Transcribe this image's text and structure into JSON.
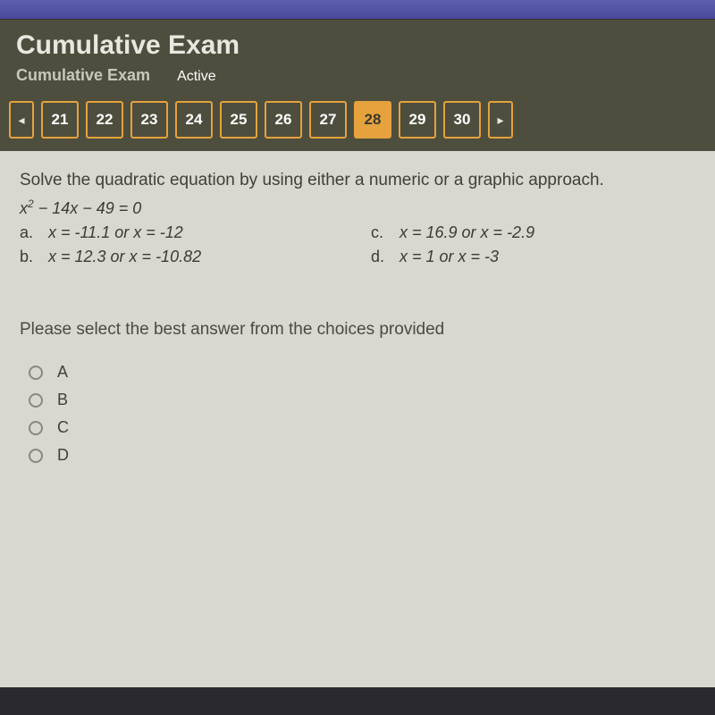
{
  "colors": {
    "header_bg": "#4e4e3e",
    "content_bg": "#d8d8d0",
    "accent": "#e6a23c",
    "title_text": "#e8e8e0",
    "body_text": "#3a3a38"
  },
  "header": {
    "title": "Cumulative Exam",
    "subtitle": "Cumulative Exam",
    "status": "Active"
  },
  "nav": {
    "prev_glyph": "◂",
    "next_glyph": "▸",
    "questions": [
      "21",
      "22",
      "23",
      "24",
      "25",
      "26",
      "27",
      "28",
      "29",
      "30"
    ],
    "active_index": 7
  },
  "question": {
    "prompt": "Solve the quadratic equation by using either a numeric or a graphic approach.",
    "equation_html": "x<span class='sup'>2</span> − 14x − 49 = 0",
    "options": [
      {
        "letter": "a.",
        "text": "x = -11.1 or x = -12"
      },
      {
        "letter": "b.",
        "text": "x = 12.3 or x = -10.82"
      },
      {
        "letter": "c.",
        "text": "x = 16.9 or x = -2.9"
      },
      {
        "letter": "d.",
        "text": "x = 1 or x = -3"
      }
    ],
    "instruction": "Please select the best answer from the choices provided",
    "answers": [
      "A",
      "B",
      "C",
      "D"
    ]
  }
}
